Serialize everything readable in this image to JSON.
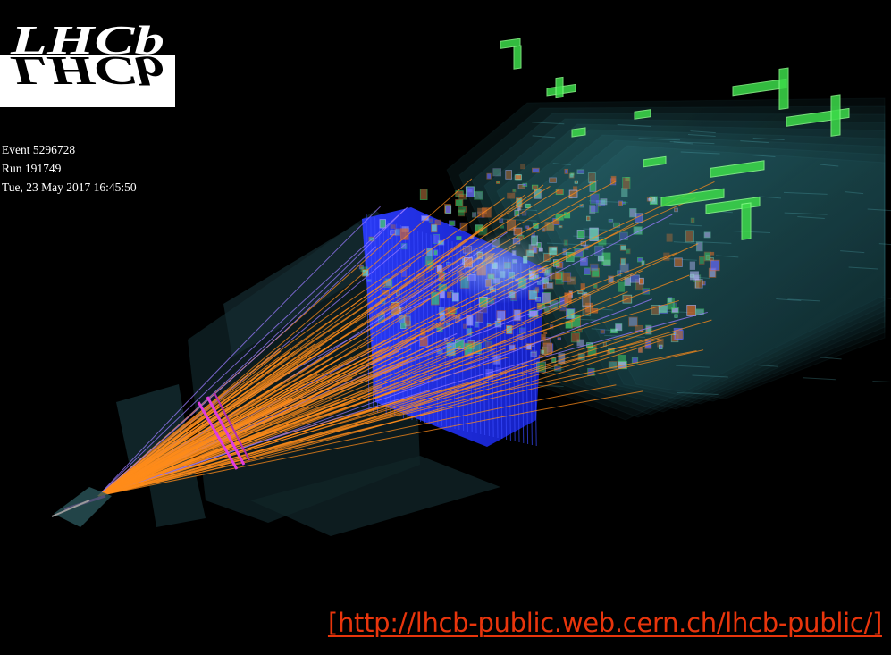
{
  "logo": {
    "text": "LHCb",
    "reflection_text": "LHCb"
  },
  "event_info": {
    "event": "Event 5296728",
    "run": "Run 191749",
    "datetime": "Tue, 23 May 2017 16:45:50"
  },
  "link": {
    "text": "[http://lhcb-public.web.cern.ch/lhcb-public/]"
  },
  "colors": {
    "background": "#000000",
    "tracks": "#ff8c1a",
    "calorimeter_blue": "#1f2cff",
    "hcal_green": "#3ddc4a",
    "detector_teal": "#2f6f78",
    "magenta_station": "#e03ce0",
    "link": "#e8350c"
  }
}
